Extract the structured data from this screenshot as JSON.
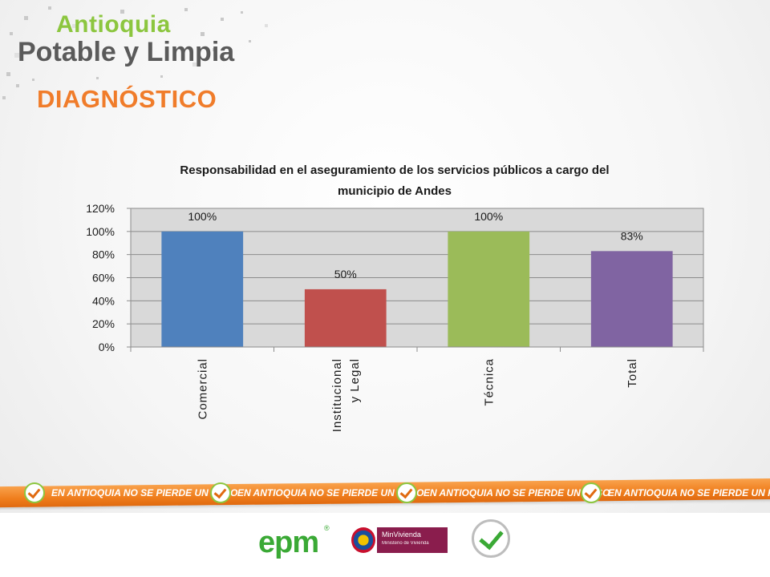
{
  "brand": {
    "line1": "Antioquia",
    "line2": "Potable y Limpia"
  },
  "section_title": "DIAGNÓSTICO",
  "chart_data": {
    "type": "bar",
    "title_lines": [
      "Responsabilidad  en el aseguramiento de los servicios públicos a cargo del",
      "municipio de Andes"
    ],
    "categories": [
      "Comercial",
      "Institucional y Legal",
      "Técnica",
      "Total"
    ],
    "category_lines": [
      [
        "Comercial"
      ],
      [
        "Institucional",
        "y Legal"
      ],
      [
        "Técnica"
      ],
      [
        "Total"
      ]
    ],
    "values": [
      100,
      50,
      100,
      83
    ],
    "data_labels": [
      "100%",
      "50%",
      "100%",
      "83%"
    ],
    "colors": [
      "#4f81bd",
      "#c0504d",
      "#9bbb59",
      "#8064a2"
    ],
    "y_ticks": [
      0,
      20,
      40,
      60,
      80,
      100,
      120
    ],
    "y_tick_labels": [
      "0%",
      "20%",
      "40%",
      "60%",
      "80%",
      "100%",
      "120%"
    ],
    "ylim": [
      0,
      120
    ],
    "grid": true,
    "legend": "none",
    "plot_background": "#d9d9d9"
  },
  "footer": {
    "slogan": "EN ANTIOQUIA NO SE PIERDE UN PESO",
    "slogan_count": 4,
    "band_color": "#ef7d1c",
    "logos": {
      "epm": "epm",
      "epm_mark": "®",
      "minvivienda": "MinVivienda",
      "minvivienda_sub": "Ministerio de Vivienda",
      "antioquia_badge": "check-badge-icon"
    }
  }
}
